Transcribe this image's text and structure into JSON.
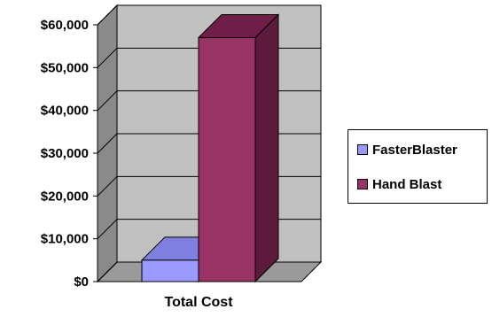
{
  "chart_data": {
    "type": "bar",
    "style": "3d-clustered-column",
    "categories": [
      "Total Cost"
    ],
    "series": [
      {
        "name": "FasterBlaster",
        "values": [
          5000
        ],
        "color": "#9999ff",
        "top_color": "#7f7fe0",
        "side_color": "#6f6fd0"
      },
      {
        "name": "Hand Blast",
        "values": [
          57000
        ],
        "color": "#993366",
        "top_color": "#6e1e48",
        "side_color": "#5c1a3c"
      }
    ],
    "title": "",
    "xlabel": "",
    "ylabel": "",
    "ylim": [
      0,
      60000
    ],
    "yticks": [
      {
        "value": 0,
        "label": "$0"
      },
      {
        "value": 10000,
        "label": "$10,000"
      },
      {
        "value": 20000,
        "label": "$20,000"
      },
      {
        "value": 30000,
        "label": "$30,000"
      },
      {
        "value": 40000,
        "label": "$40,000"
      },
      {
        "value": 50000,
        "label": "$50,000"
      },
      {
        "value": 60000,
        "label": "$60,000"
      }
    ],
    "grid": true,
    "legend": "right",
    "wall_color": "#c0c0c0",
    "side_wall_color": "#8a8a8a",
    "floor_color": "#9a9a9a"
  }
}
